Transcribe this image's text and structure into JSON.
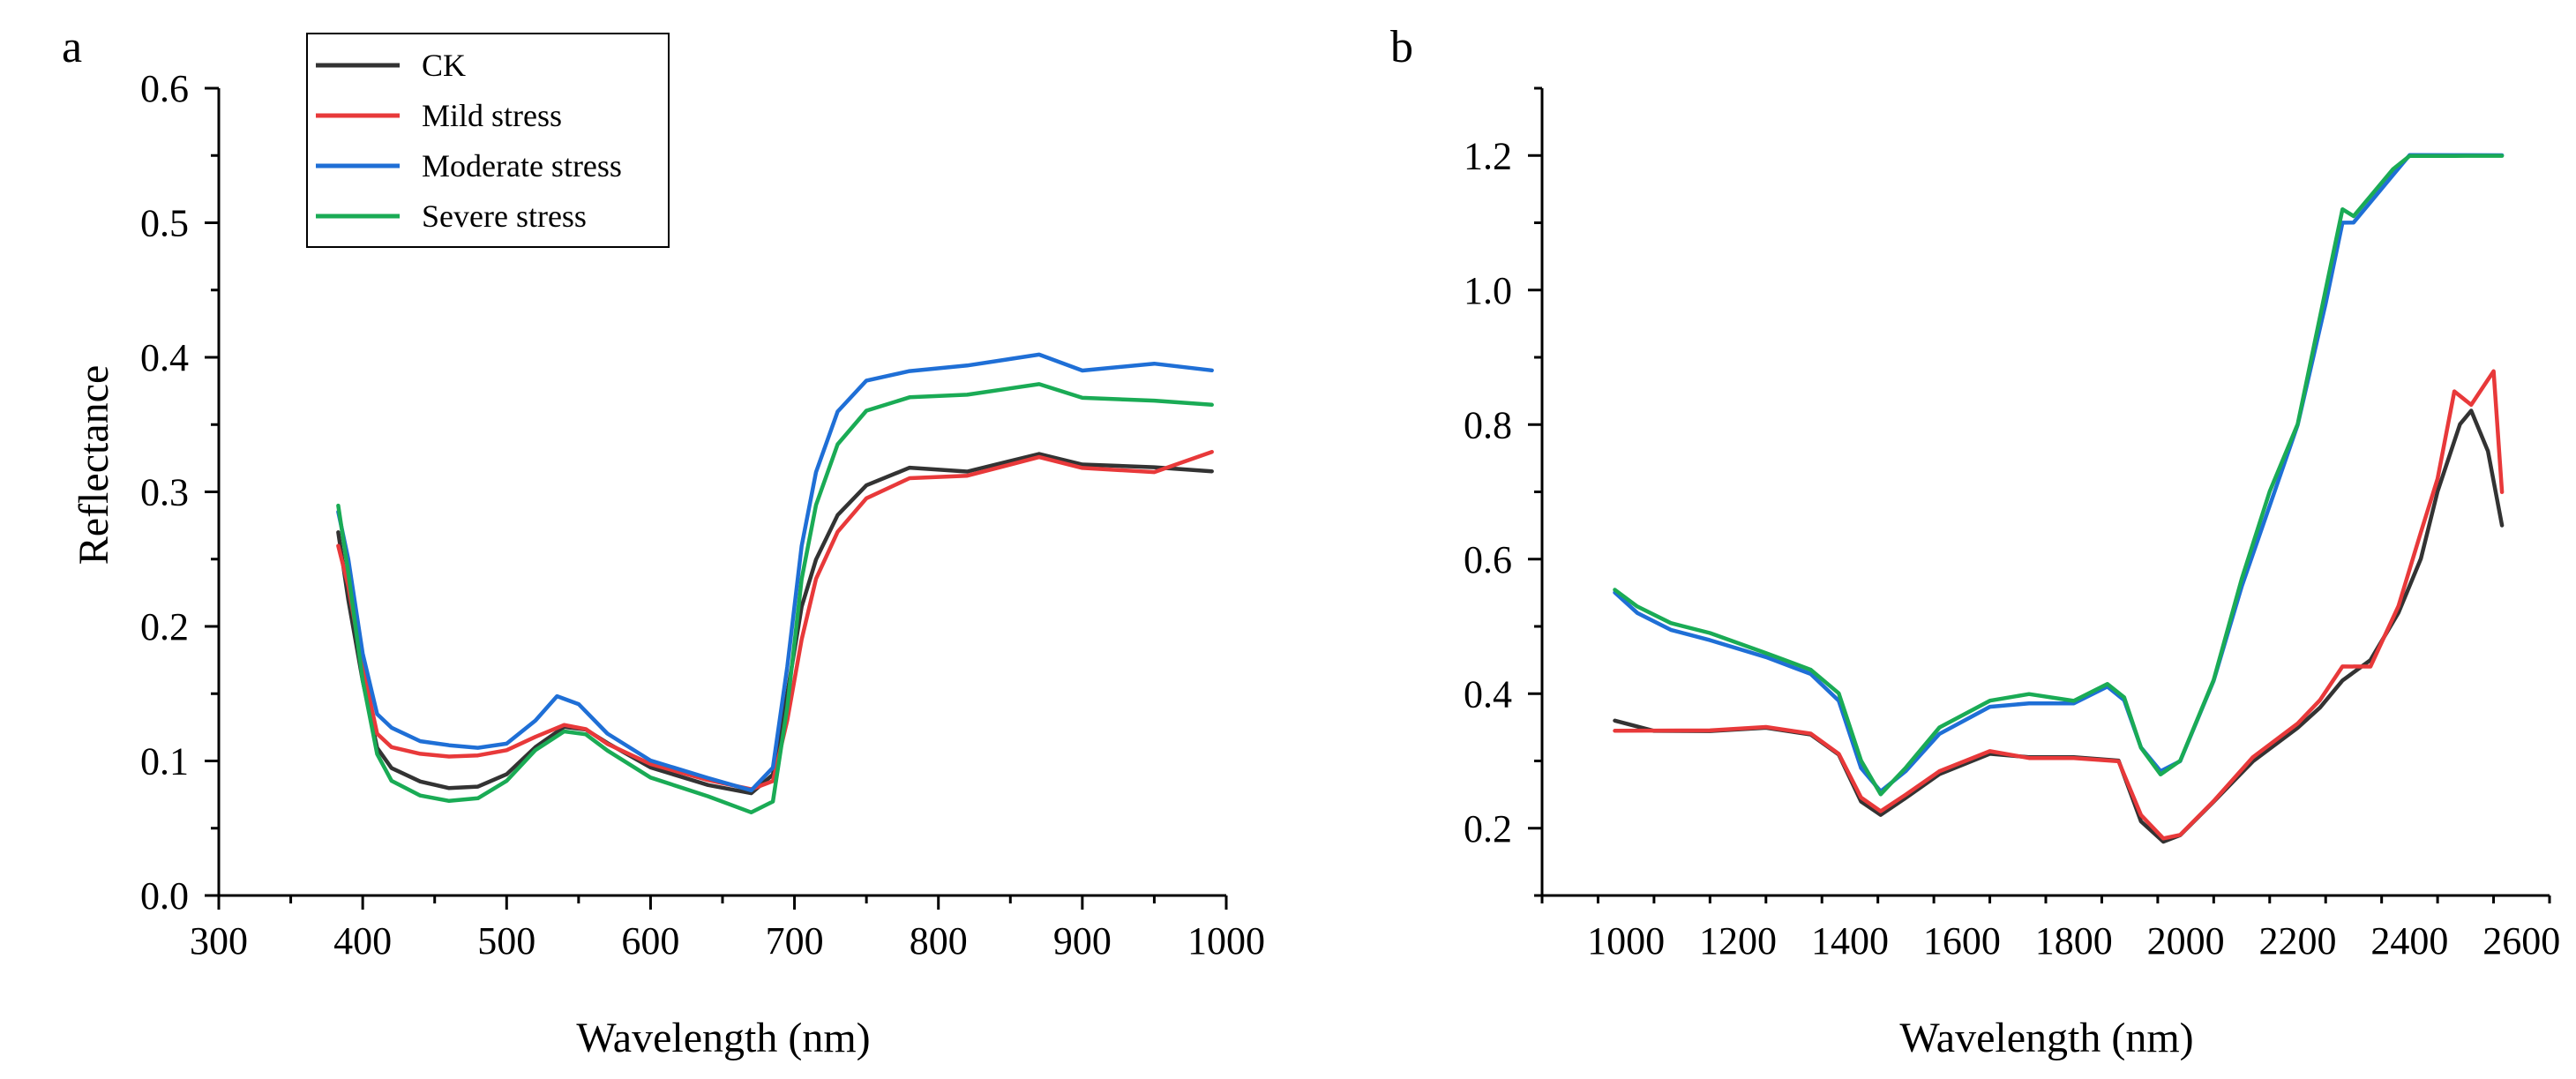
{
  "chart_data": [
    {
      "type": "line",
      "panel": "a",
      "xlabel": "Wavelength (nm)",
      "ylabel": "Reflectance",
      "xlim": [
        300,
        1000
      ],
      "ylim": [
        0.0,
        0.6
      ],
      "xticks": [
        300,
        400,
        500,
        600,
        700,
        800,
        900,
        1000
      ],
      "yticks": [
        0.0,
        0.1,
        0.2,
        0.3,
        0.4,
        0.5,
        0.6
      ],
      "ytick_labels": [
        "0.0",
        "0.1",
        "0.2",
        "0.3",
        "0.4",
        "0.5",
        "0.6"
      ],
      "legend": {
        "placement": "top-left",
        "entries": [
          "CK",
          "Mild stress",
          "Moderate stress",
          "Severe stress"
        ]
      },
      "series": [
        {
          "name": "CK",
          "color": "#333333",
          "x": [
            383,
            390,
            400,
            410,
            420,
            440,
            460,
            480,
            500,
            520,
            540,
            555,
            570,
            600,
            640,
            670,
            685,
            695,
            705,
            715,
            730,
            750,
            780,
            820,
            870,
            900,
            950,
            990
          ],
          "y": [
            0.27,
            0.22,
            0.16,
            0.11,
            0.095,
            0.085,
            0.08,
            0.081,
            0.09,
            0.11,
            0.125,
            0.123,
            0.113,
            0.095,
            0.082,
            0.076,
            0.09,
            0.15,
            0.215,
            0.25,
            0.283,
            0.305,
            0.318,
            0.315,
            0.328,
            0.32,
            0.318,
            0.315
          ]
        },
        {
          "name": "Mild stress",
          "color": "#e8393a",
          "x": [
            383,
            390,
            400,
            410,
            420,
            440,
            460,
            480,
            500,
            520,
            540,
            555,
            570,
            600,
            640,
            670,
            685,
            695,
            705,
            715,
            730,
            750,
            780,
            820,
            870,
            900,
            950,
            990
          ],
          "y": [
            0.26,
            0.23,
            0.17,
            0.12,
            0.11,
            0.105,
            0.103,
            0.104,
            0.108,
            0.118,
            0.127,
            0.124,
            0.113,
            0.098,
            0.086,
            0.079,
            0.085,
            0.13,
            0.19,
            0.235,
            0.27,
            0.295,
            0.31,
            0.312,
            0.326,
            0.318,
            0.315,
            0.33
          ]
        },
        {
          "name": "Moderate stress",
          "color": "#1f6fd6",
          "x": [
            383,
            390,
            400,
            410,
            420,
            440,
            460,
            480,
            500,
            520,
            535,
            550,
            570,
            600,
            640,
            670,
            685,
            695,
            705,
            715,
            730,
            750,
            780,
            820,
            870,
            900,
            950,
            990
          ],
          "y": [
            0.285,
            0.25,
            0.18,
            0.135,
            0.125,
            0.115,
            0.112,
            0.11,
            0.113,
            0.13,
            0.148,
            0.142,
            0.12,
            0.1,
            0.087,
            0.078,
            0.095,
            0.17,
            0.26,
            0.315,
            0.36,
            0.383,
            0.39,
            0.394,
            0.402,
            0.39,
            0.395,
            0.39
          ]
        },
        {
          "name": "Severe stress",
          "color": "#1aab55",
          "x": [
            383,
            390,
            400,
            410,
            420,
            440,
            460,
            480,
            500,
            520,
            540,
            555,
            570,
            600,
            640,
            670,
            685,
            695,
            705,
            715,
            730,
            750,
            780,
            820,
            870,
            900,
            950,
            990
          ],
          "y": [
            0.29,
            0.24,
            0.16,
            0.105,
            0.085,
            0.074,
            0.07,
            0.072,
            0.085,
            0.108,
            0.122,
            0.12,
            0.108,
            0.088,
            0.074,
            0.062,
            0.07,
            0.14,
            0.235,
            0.29,
            0.335,
            0.36,
            0.37,
            0.372,
            0.38,
            0.37,
            0.368,
            0.365
          ]
        }
      ]
    },
    {
      "type": "line",
      "panel": "b",
      "xlabel": "Wavelength (nm)",
      "ylabel": "",
      "xlim": [
        850,
        2650
      ],
      "ylim": [
        0.1,
        1.3
      ],
      "xticks": [
        1000,
        1200,
        1400,
        1600,
        1800,
        2000,
        2200,
        2400,
        2600
      ],
      "yticks": [
        0.2,
        0.4,
        0.6,
        0.8,
        1.0,
        1.2
      ],
      "ytick_labels": [
        "0.2",
        "0.4",
        "0.6",
        "0.8",
        "1.0",
        "1.2"
      ],
      "series": [
        {
          "name": "CK",
          "color": "#333333",
          "x": [
            980,
            1050,
            1150,
            1250,
            1330,
            1380,
            1420,
            1455,
            1500,
            1560,
            1650,
            1720,
            1800,
            1880,
            1920,
            1960,
            1990,
            2050,
            2120,
            2200,
            2240,
            2280,
            2330,
            2380,
            2420,
            2450,
            2490,
            2510,
            2540,
            2565
          ],
          "y": [
            0.36,
            0.345,
            0.345,
            0.35,
            0.34,
            0.31,
            0.24,
            0.22,
            0.245,
            0.28,
            0.31,
            0.305,
            0.305,
            0.3,
            0.21,
            0.18,
            0.19,
            0.24,
            0.3,
            0.35,
            0.38,
            0.42,
            0.45,
            0.52,
            0.6,
            0.7,
            0.8,
            0.82,
            0.76,
            0.65
          ]
        },
        {
          "name": "Mild stress",
          "color": "#e8393a",
          "x": [
            980,
            1050,
            1150,
            1250,
            1330,
            1380,
            1420,
            1455,
            1500,
            1560,
            1650,
            1720,
            1800,
            1880,
            1920,
            1960,
            1990,
            2050,
            2120,
            2200,
            2240,
            2280,
            2330,
            2380,
            2420,
            2450,
            2480,
            2510,
            2550,
            2565
          ],
          "y": [
            0.345,
            0.345,
            0.345,
            0.35,
            0.34,
            0.31,
            0.245,
            0.225,
            0.25,
            0.285,
            0.315,
            0.305,
            0.305,
            0.3,
            0.22,
            0.185,
            0.19,
            0.24,
            0.305,
            0.355,
            0.39,
            0.44,
            0.44,
            0.53,
            0.64,
            0.72,
            0.85,
            0.83,
            0.88,
            0.7
          ]
        },
        {
          "name": "Moderate stress",
          "color": "#1f6fd6",
          "x": [
            980,
            1020,
            1080,
            1150,
            1250,
            1330,
            1380,
            1420,
            1455,
            1500,
            1560,
            1650,
            1720,
            1800,
            1860,
            1890,
            1920,
            1955,
            1990,
            2050,
            2100,
            2150,
            2200,
            2250,
            2280,
            2300,
            2330,
            2370,
            2400,
            2480,
            2565
          ],
          "y": [
            0.55,
            0.52,
            0.495,
            0.48,
            0.455,
            0.43,
            0.39,
            0.29,
            0.255,
            0.285,
            0.34,
            0.38,
            0.385,
            0.385,
            0.41,
            0.39,
            0.32,
            0.285,
            0.3,
            0.42,
            0.56,
            0.68,
            0.8,
            0.98,
            1.1,
            1.1,
            1.13,
            1.17,
            1.2,
            1.2,
            1.2
          ]
        },
        {
          "name": "Severe stress",
          "color": "#1aab55",
          "x": [
            980,
            1020,
            1080,
            1150,
            1250,
            1330,
            1380,
            1420,
            1455,
            1500,
            1560,
            1650,
            1720,
            1800,
            1860,
            1890,
            1920,
            1955,
            1990,
            2050,
            2100,
            2150,
            2200,
            2250,
            2280,
            2300,
            2330,
            2370,
            2400,
            2480,
            2565
          ],
          "y": [
            0.555,
            0.53,
            0.505,
            0.49,
            0.46,
            0.435,
            0.4,
            0.3,
            0.25,
            0.29,
            0.35,
            0.39,
            0.4,
            0.39,
            0.415,
            0.395,
            0.32,
            0.28,
            0.3,
            0.42,
            0.57,
            0.7,
            0.8,
            1.0,
            1.12,
            1.11,
            1.14,
            1.18,
            1.2,
            1.2,
            1.2
          ]
        }
      ]
    }
  ]
}
